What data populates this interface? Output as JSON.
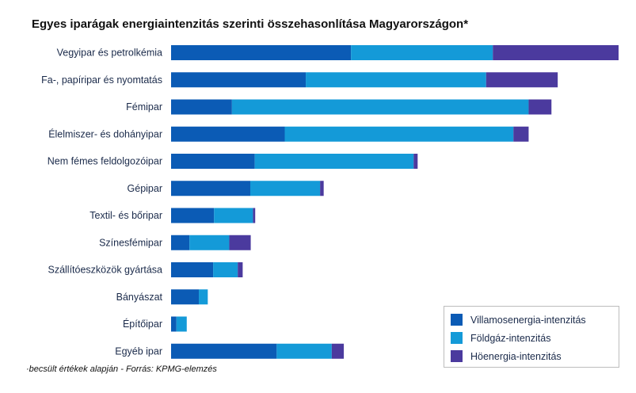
{
  "title": "Egyes iparágak energiaintenzitás szerinti összehasonlítása Magyarországon*",
  "footnote": "·becsült értékek alapján - Forrás: KPMG-elemzés",
  "colors": {
    "villamos": "#0b5bb5",
    "foldgaz": "#149ad8",
    "ho": "#4b3a9e"
  },
  "chart_data": {
    "type": "bar",
    "orientation": "horizontal",
    "stacked": true,
    "title": "Egyes iparágak energiaintenzitás szerinti összehasonlítása Magyarországon*",
    "legend_position": "bottom-right",
    "grid": false,
    "xlim": [
      0,
      100
    ],
    "categories": [
      "Vegyipar és petrolkémia",
      "Fa-, papíripar és nyomtatás",
      "Fémipar",
      "Élelmiszer- és dohányipar",
      "Nem fémes feldolgozóipar",
      "Gépipar",
      "Textil- és bőripar",
      "Színesfémipar",
      "Szállítóeszközök gyártása",
      "Bányászat",
      "Építőipar",
      "Egyéb ipar"
    ],
    "series": [
      {
        "name": "Villamosenergia-intenzitás",
        "values": [
          40.2,
          30.1,
          13.6,
          25.4,
          18.7,
          17.7,
          9.6,
          4.1,
          9.4,
          6.2,
          1.2,
          23.6
        ]
      },
      {
        "name": "Földgáz-intenzitás",
        "values": [
          31.7,
          40.3,
          66.3,
          51.1,
          35.5,
          15.6,
          8.7,
          8.9,
          5.5,
          2.0,
          2.3,
          12.3
        ]
      },
      {
        "name": "Höenergia-intenzitás",
        "values": [
          28.1,
          16.0,
          5.1,
          3.4,
          0.9,
          0.8,
          0.5,
          4.8,
          1.1,
          0,
          0,
          2.7
        ]
      }
    ]
  }
}
